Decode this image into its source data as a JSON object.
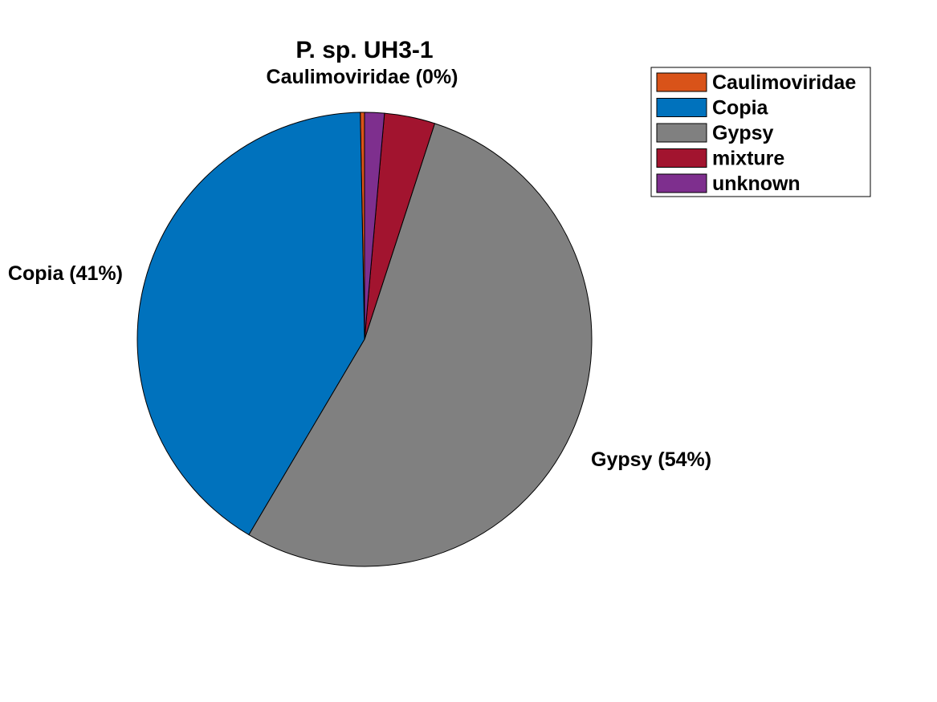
{
  "chart_data": {
    "type": "pie",
    "title": "P. sp. UH3-1",
    "labels": [
      "Caulimoviridae",
      "Copia",
      "Gypsy",
      "mixture",
      "unknown"
    ],
    "values": [
      0.3,
      41.2,
      53.5,
      3.6,
      1.4
    ],
    "slice_labels": [
      "Caulimoviridae (0%)",
      "Copia (41%)",
      "Gypsy (54%)",
      "",
      ""
    ],
    "colors": [
      "#D95319",
      "#0072BD",
      "#808080",
      "#A2142F",
      "#7E2F8E"
    ],
    "start_angle": "top",
    "direction": "counterclockwise",
    "legend": {
      "placement": "top-right",
      "entries": [
        "Caulimoviridae",
        "Copia",
        "Gypsy",
        "mixture",
        "unknown"
      ]
    }
  }
}
